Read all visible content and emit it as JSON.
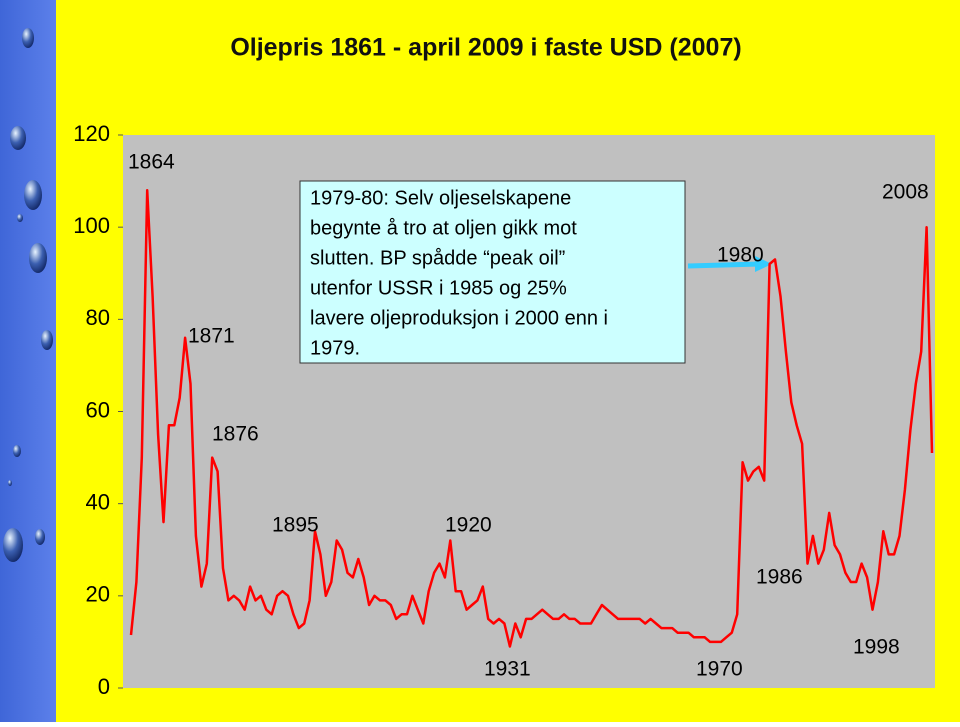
{
  "chart_data": {
    "type": "line",
    "title": "Oljepris 1861 - april 2009 i faste USD (2007)",
    "x": [
      1861,
      1862,
      1863,
      1864,
      1865,
      1866,
      1867,
      1868,
      1869,
      1870,
      1871,
      1872,
      1873,
      1874,
      1875,
      1876,
      1877,
      1878,
      1879,
      1880,
      1881,
      1882,
      1883,
      1884,
      1885,
      1886,
      1887,
      1888,
      1889,
      1890,
      1891,
      1892,
      1893,
      1894,
      1895,
      1896,
      1897,
      1898,
      1899,
      1900,
      1901,
      1902,
      1903,
      1904,
      1905,
      1906,
      1907,
      1908,
      1909,
      1910,
      1911,
      1912,
      1913,
      1914,
      1915,
      1916,
      1917,
      1918,
      1919,
      1920,
      1921,
      1922,
      1923,
      1924,
      1925,
      1926,
      1927,
      1928,
      1929,
      1930,
      1931,
      1932,
      1933,
      1934,
      1935,
      1936,
      1937,
      1938,
      1939,
      1940,
      1941,
      1942,
      1943,
      1944,
      1945,
      1946,
      1947,
      1948,
      1949,
      1950,
      1951,
      1952,
      1953,
      1954,
      1955,
      1956,
      1957,
      1958,
      1959,
      1960,
      1961,
      1962,
      1963,
      1964,
      1965,
      1966,
      1967,
      1968,
      1969,
      1970,
      1971,
      1972,
      1973,
      1974,
      1975,
      1976,
      1977,
      1978,
      1979,
      1980,
      1981,
      1982,
      1983,
      1984,
      1985,
      1986,
      1987,
      1988,
      1989,
      1990,
      1991,
      1992,
      1993,
      1994,
      1995,
      1996,
      1997,
      1998,
      1999,
      2000,
      2001,
      2002,
      2003,
      2004,
      2005,
      2006,
      2007,
      2008,
      2009
    ],
    "values": [
      11.5,
      23,
      50,
      108,
      85,
      55,
      36,
      57,
      57,
      63,
      76,
      66,
      33,
      22,
      27,
      50,
      47,
      26,
      19,
      20,
      19,
      17,
      22,
      19,
      20,
      17,
      16,
      20,
      21,
      20,
      16,
      13,
      14,
      19,
      34,
      29,
      20,
      23,
      32,
      30,
      25,
      24,
      28,
      24,
      18,
      20,
      19,
      19,
      18,
      15,
      16,
      16,
      20,
      17,
      14,
      21,
      25,
      27,
      24,
      32,
      21,
      21,
      17,
      18,
      19,
      22,
      15,
      14,
      15,
      14,
      9,
      14,
      11,
      15,
      15,
      16,
      17,
      16,
      15,
      15,
      16,
      15,
      15,
      14,
      14,
      14,
      16,
      18,
      17,
      16,
      15,
      15,
      15,
      15,
      15,
      14,
      15,
      14,
      13,
      13,
      13,
      12,
      12,
      12,
      11,
      11,
      11,
      10,
      10,
      10,
      11,
      12,
      16,
      49,
      45,
      47,
      48,
      45,
      92,
      93,
      85,
      73,
      62,
      57,
      53,
      27,
      33,
      27,
      30,
      38,
      31,
      29,
      25,
      23,
      23,
      27,
      24,
      17,
      23,
      34,
      29,
      29,
      33,
      43,
      56,
      66,
      73,
      100,
      51
    ],
    "color": "#ff0000",
    "xlim": [
      1861,
      2009
    ],
    "ylim": [
      0,
      120
    ],
    "yticks": [
      0,
      20,
      40,
      60,
      80,
      100,
      120
    ],
    "grid": false,
    "annotations": [
      "1864",
      "1871",
      "1876",
      "1895",
      "1920",
      "1931",
      "1970",
      "1980",
      "1986",
      "1998",
      "2008"
    ],
    "note": [
      "1979-80: Selv oljeselskapene",
      "begynte å tro at oljen gikk mot",
      "slutten. BP spådde “peak oil”",
      "utenfor USSR i 1985 og 25%",
      "lavere oljeproduksjon i 2000 enn i",
      "1979."
    ]
  }
}
